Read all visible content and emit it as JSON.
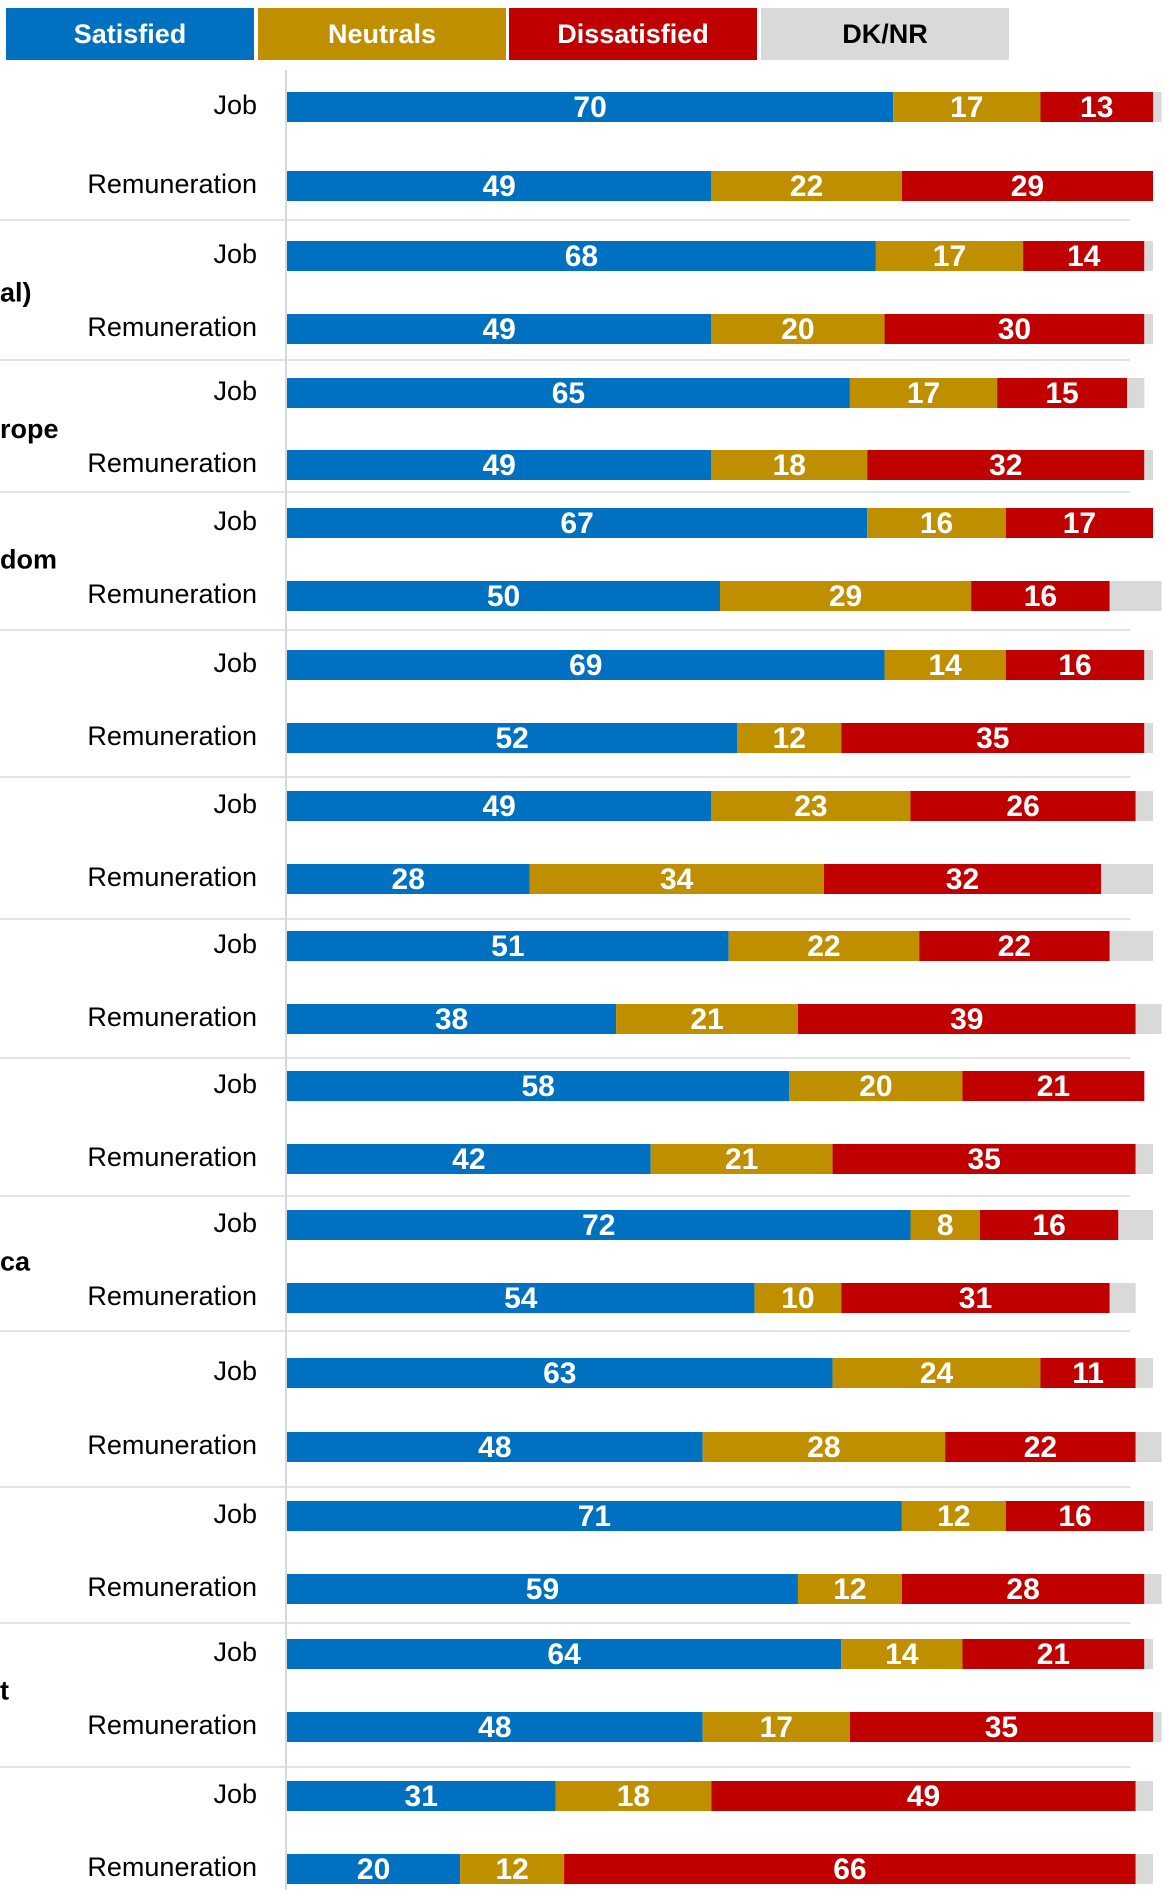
{
  "legend": [
    {
      "name": "Satisfied",
      "color": "#0070C0",
      "text_color": "#ffffff"
    },
    {
      "name": "Neutrals",
      "color": "#BF8F00",
      "text_color": "#ffffff"
    },
    {
      "name": "Dissatisfied",
      "color": "#C00000",
      "text_color": "#ffffff"
    },
    {
      "name": "DK/NR",
      "color": "#D9D9D9",
      "text_color": "#000000"
    }
  ],
  "chart_data": {
    "type": "bar",
    "orientation": "horizontal",
    "stacked": true,
    "xlim": [
      0,
      100
    ],
    "grid": false,
    "legend_position": "top-left",
    "series_names": [
      "Satisfied",
      "Neutrals",
      "Dissatisfied",
      "DK/NR"
    ],
    "groups": [
      {
        "label": "",
        "rows": [
          {
            "label": "Job",
            "values": [
              70,
              17,
              13,
              1
            ]
          },
          {
            "label": "Remuneration",
            "values": [
              49,
              22,
              29,
              0
            ]
          }
        ]
      },
      {
        "label": "al)",
        "rows": [
          {
            "label": "Job",
            "values": [
              68,
              17,
              14,
              1
            ]
          },
          {
            "label": "Remuneration",
            "values": [
              49,
              20,
              30,
              1
            ]
          }
        ]
      },
      {
        "label": "rope",
        "rows": [
          {
            "label": "Job",
            "values": [
              65,
              17,
              15,
              2
            ]
          },
          {
            "label": "Remuneration",
            "values": [
              49,
              18,
              32,
              1
            ]
          }
        ]
      },
      {
        "label": "dom",
        "rows": [
          {
            "label": "Job",
            "values": [
              67,
              16,
              17,
              0
            ]
          },
          {
            "label": "Remuneration",
            "values": [
              50,
              29,
              16,
              6
            ]
          }
        ]
      },
      {
        "label": "",
        "rows": [
          {
            "label": "Job",
            "values": [
              69,
              14,
              16,
              1
            ]
          },
          {
            "label": "Remuneration",
            "values": [
              52,
              12,
              35,
              1
            ]
          }
        ]
      },
      {
        "label": "",
        "rows": [
          {
            "label": "Job",
            "values": [
              49,
              23,
              26,
              2
            ]
          },
          {
            "label": "Remuneration",
            "values": [
              28,
              34,
              32,
              6
            ]
          }
        ]
      },
      {
        "label": "",
        "rows": [
          {
            "label": "Job",
            "values": [
              51,
              22,
              22,
              5
            ]
          },
          {
            "label": "Remuneration",
            "values": [
              38,
              21,
              39,
              3
            ]
          }
        ]
      },
      {
        "label": "",
        "rows": [
          {
            "label": "Job",
            "values": [
              58,
              20,
              21,
              0
            ]
          },
          {
            "label": "Remuneration",
            "values": [
              42,
              21,
              35,
              2
            ]
          }
        ]
      },
      {
        "label": "ca",
        "rows": [
          {
            "label": "Job",
            "values": [
              72,
              8,
              16,
              4
            ]
          },
          {
            "label": "Remuneration",
            "values": [
              54,
              10,
              31,
              3
            ]
          }
        ]
      },
      {
        "label": "",
        "rows": [
          {
            "label": "Job",
            "values": [
              63,
              24,
              11,
              2
            ]
          },
          {
            "label": "Remuneration",
            "values": [
              48,
              28,
              22,
              3
            ]
          }
        ]
      },
      {
        "label": "",
        "rows": [
          {
            "label": "Job",
            "values": [
              71,
              12,
              16,
              1
            ]
          },
          {
            "label": "Remuneration",
            "values": [
              59,
              12,
              28,
              2
            ]
          }
        ]
      },
      {
        "label": "t",
        "rows": [
          {
            "label": "Job",
            "values": [
              64,
              14,
              21,
              1
            ]
          },
          {
            "label": "Remuneration",
            "values": [
              48,
              17,
              35,
              1
            ]
          }
        ]
      },
      {
        "label": "",
        "rows": [
          {
            "label": "Job",
            "values": [
              31,
              18,
              49,
              2
            ]
          },
          {
            "label": "Remuneration",
            "values": [
              20,
              12,
              66,
              2
            ]
          }
        ]
      }
    ]
  }
}
